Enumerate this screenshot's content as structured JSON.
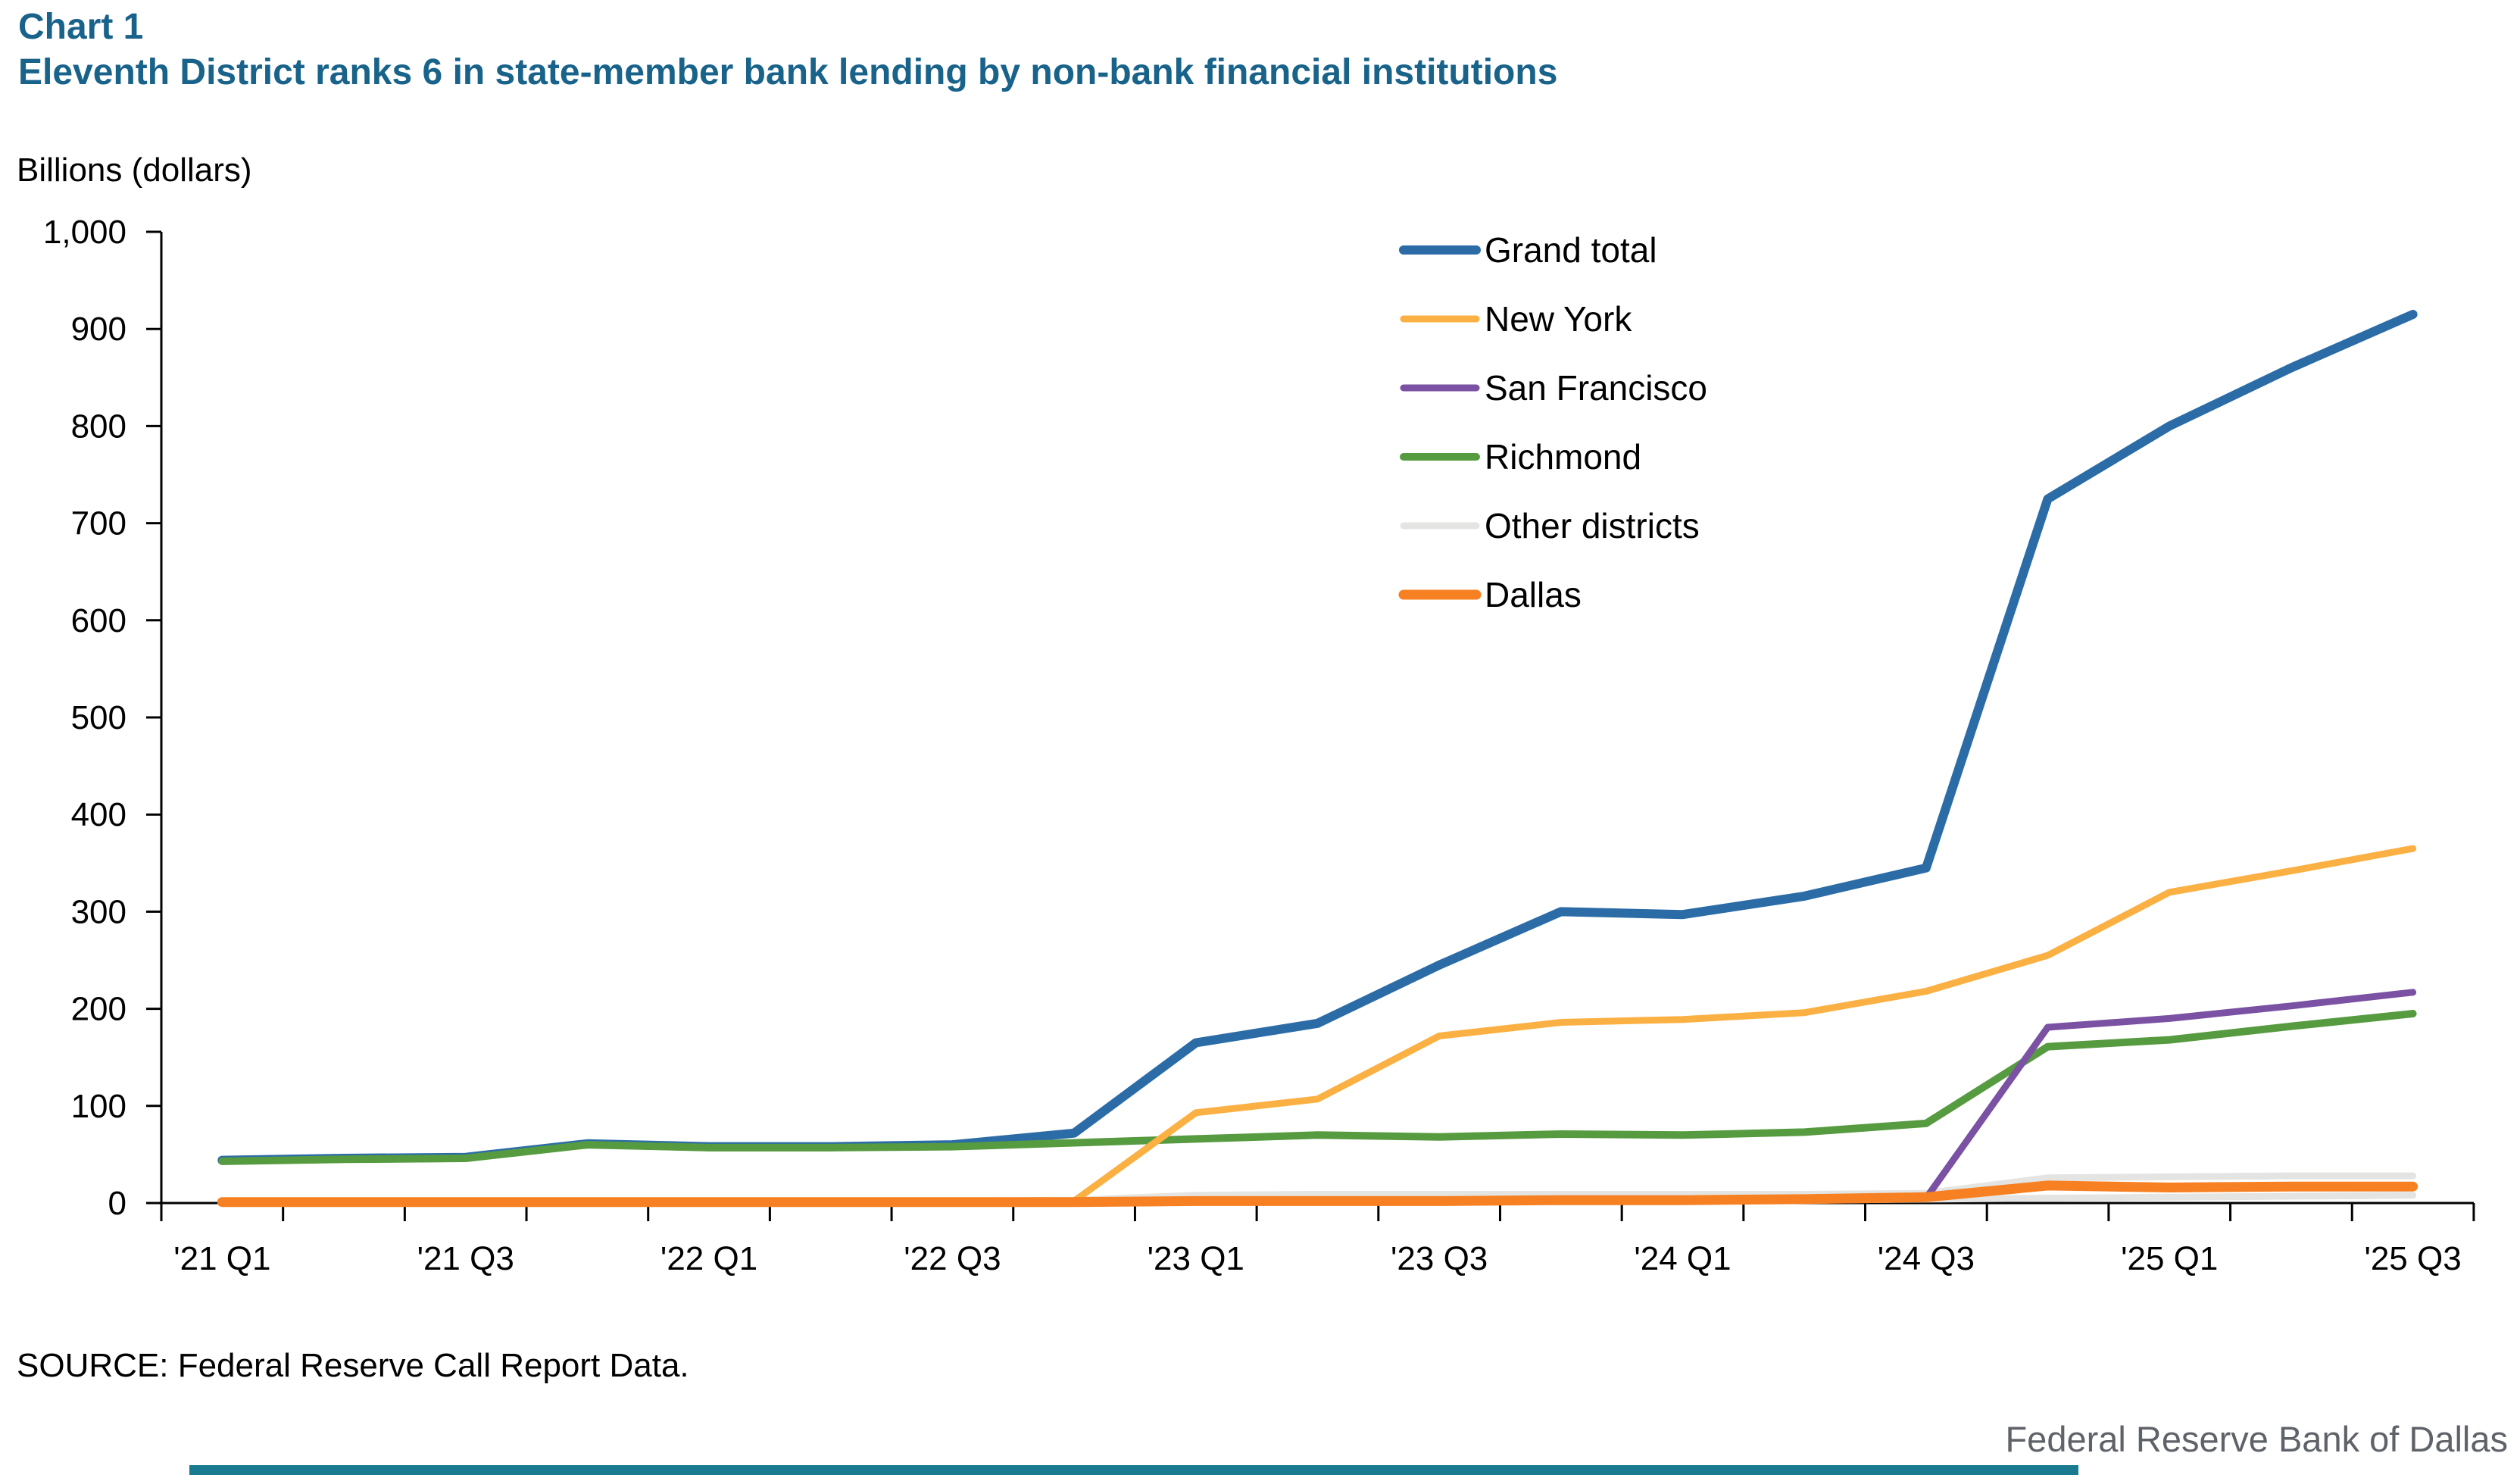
{
  "header": {
    "title": "Chart 1",
    "subtitle": "Eleventh District ranks 6 in state-member bank lending by non-bank financial institutions",
    "title_color": "#19638b"
  },
  "y_axis": {
    "title": "Billions (dollars)",
    "tick_labels": [
      "0",
      "100",
      "200",
      "300",
      "400",
      "500",
      "600",
      "700",
      "800",
      "900",
      "1,000"
    ]
  },
  "x_axis": {
    "tick_labels": [
      "'21 Q1",
      "'21 Q3",
      "'22 Q1",
      "'22 Q3",
      "'23 Q1",
      "'23 Q3",
      "'24 Q1",
      "'24 Q3",
      "'25 Q1",
      "'25 Q3"
    ]
  },
  "legend": [
    {
      "label": "Grand total",
      "color": "#2b6ca7"
    },
    {
      "label": "New York",
      "color": "#fbb043"
    },
    {
      "label": "San Francisco",
      "color": "#7b51a3"
    },
    {
      "label": "Richmond",
      "color": "#579b41"
    },
    {
      "label": "Other districts",
      "color": "#e4e4e2"
    },
    {
      "label": "Dallas",
      "color": "#f68022"
    }
  ],
  "source": "SOURCE: Federal Reserve Call Report Data.",
  "footer": {
    "org_label": "Federal Reserve Bank of Dallas",
    "bar_color": "#1a7a8f"
  },
  "chart_data": {
    "type": "line",
    "title": "Eleventh District ranks 6 in state-member bank lending by non-bank financial institutions",
    "xlabel": "",
    "ylabel": "Billions (dollars)",
    "ylim": [
      0,
      1000
    ],
    "y_tick_step": 100,
    "grid": false,
    "legend_position": "top-right inside plot",
    "x_labeled_every_n": 2,
    "x_categories": [
      "'21 Q1",
      "'21 Q2",
      "'21 Q3",
      "'21 Q4",
      "'22 Q1",
      "'22 Q2",
      "'22 Q3",
      "'22 Q4",
      "'23 Q1",
      "'23 Q2",
      "'23 Q3",
      "'23 Q4",
      "'24 Q1",
      "'24 Q2",
      "'24 Q3",
      "'24 Q4",
      "'25 Q1",
      "'25 Q2",
      "'25 Q3"
    ],
    "series": [
      {
        "name": "Other districts (lower line)",
        "legend_label": "Other districts",
        "color": "#e4e4e2",
        "values": [
          0,
          0,
          0,
          0,
          0,
          0,
          1,
          1,
          2,
          2,
          3,
          3,
          3,
          3,
          4,
          5,
          6,
          7,
          8
        ]
      },
      {
        "name": "Other districts (upper line)",
        "legend_label": "Other districts",
        "color": "#e4e4e2",
        "values": [
          1,
          1,
          1,
          1,
          1,
          1,
          2,
          3,
          8,
          9,
          9,
          9,
          9,
          9,
          10,
          26,
          27,
          28,
          28
        ]
      },
      {
        "name": "Grand total",
        "legend_label": "Grand total",
        "color": "#2b6ca7",
        "values": [
          44,
          46,
          47,
          61,
          58,
          58,
          60,
          72,
          165,
          185,
          245,
          300,
          297,
          316,
          345,
          725,
          800,
          860,
          915
        ]
      },
      {
        "name": "Richmond",
        "legend_label": "Richmond",
        "color": "#579b41",
        "values": [
          43,
          45,
          46,
          60,
          57,
          57,
          58,
          62,
          66,
          70,
          68,
          71,
          70,
          73,
          82,
          161,
          168,
          182,
          195
        ]
      },
      {
        "name": "San Francisco",
        "legend_label": "San Francisco",
        "color": "#7b51a3",
        "values": [
          0,
          0,
          0,
          0,
          0,
          0,
          0,
          0,
          1,
          1,
          1,
          2,
          2,
          3,
          5,
          181,
          190,
          203,
          217
        ]
      },
      {
        "name": "New York",
        "legend_label": "New York",
        "color": "#fbb043",
        "values": [
          0,
          0,
          0,
          0,
          0,
          0,
          0,
          2,
          93,
          107,
          172,
          186,
          189,
          196,
          218,
          255,
          320,
          342,
          365
        ]
      },
      {
        "name": "Dallas",
        "legend_label": "Dallas",
        "color": "#f68022",
        "values": [
          1,
          1,
          1,
          1,
          1,
          1,
          1,
          1,
          2,
          2,
          2,
          3,
          3,
          4,
          6,
          18,
          16,
          17,
          17
        ]
      }
    ]
  }
}
